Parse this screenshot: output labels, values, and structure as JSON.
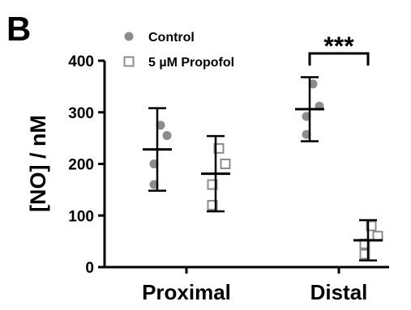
{
  "chart_data": {
    "type": "scatter",
    "panel_label": "B",
    "ylabel": "[NO] / nM",
    "xlabel": "",
    "ylim": [
      0,
      400
    ],
    "yticks": [
      0,
      100,
      200,
      300,
      400
    ],
    "categories": [
      "Proximal",
      "Distal"
    ],
    "series": [
      {
        "name": "Control",
        "marker": "filled-circle",
        "color": "#8c8c8c",
        "points": {
          "Proximal": [
            275,
            255,
            200,
            160
          ],
          "Distal": [
            355,
            312,
            292,
            257
          ]
        },
        "mean": {
          "Proximal": 228,
          "Distal": 306
        },
        "sd": {
          "Proximal": 80,
          "Distal": 62
        }
      },
      {
        "name": "5 µM Propofol",
        "marker": "open-square",
        "color": "#8c8c8c",
        "points": {
          "Proximal": [
            230,
            200,
            160,
            120
          ],
          "Distal": [
            80,
            60,
            45,
            25
          ]
        },
        "mean": {
          "Proximal": 181,
          "Distal": 52
        },
        "sd": {
          "Proximal": 73,
          "Distal": 39
        }
      }
    ],
    "significance": [
      {
        "category": "Distal",
        "label": "***"
      }
    ],
    "legend_position": "top-left"
  }
}
